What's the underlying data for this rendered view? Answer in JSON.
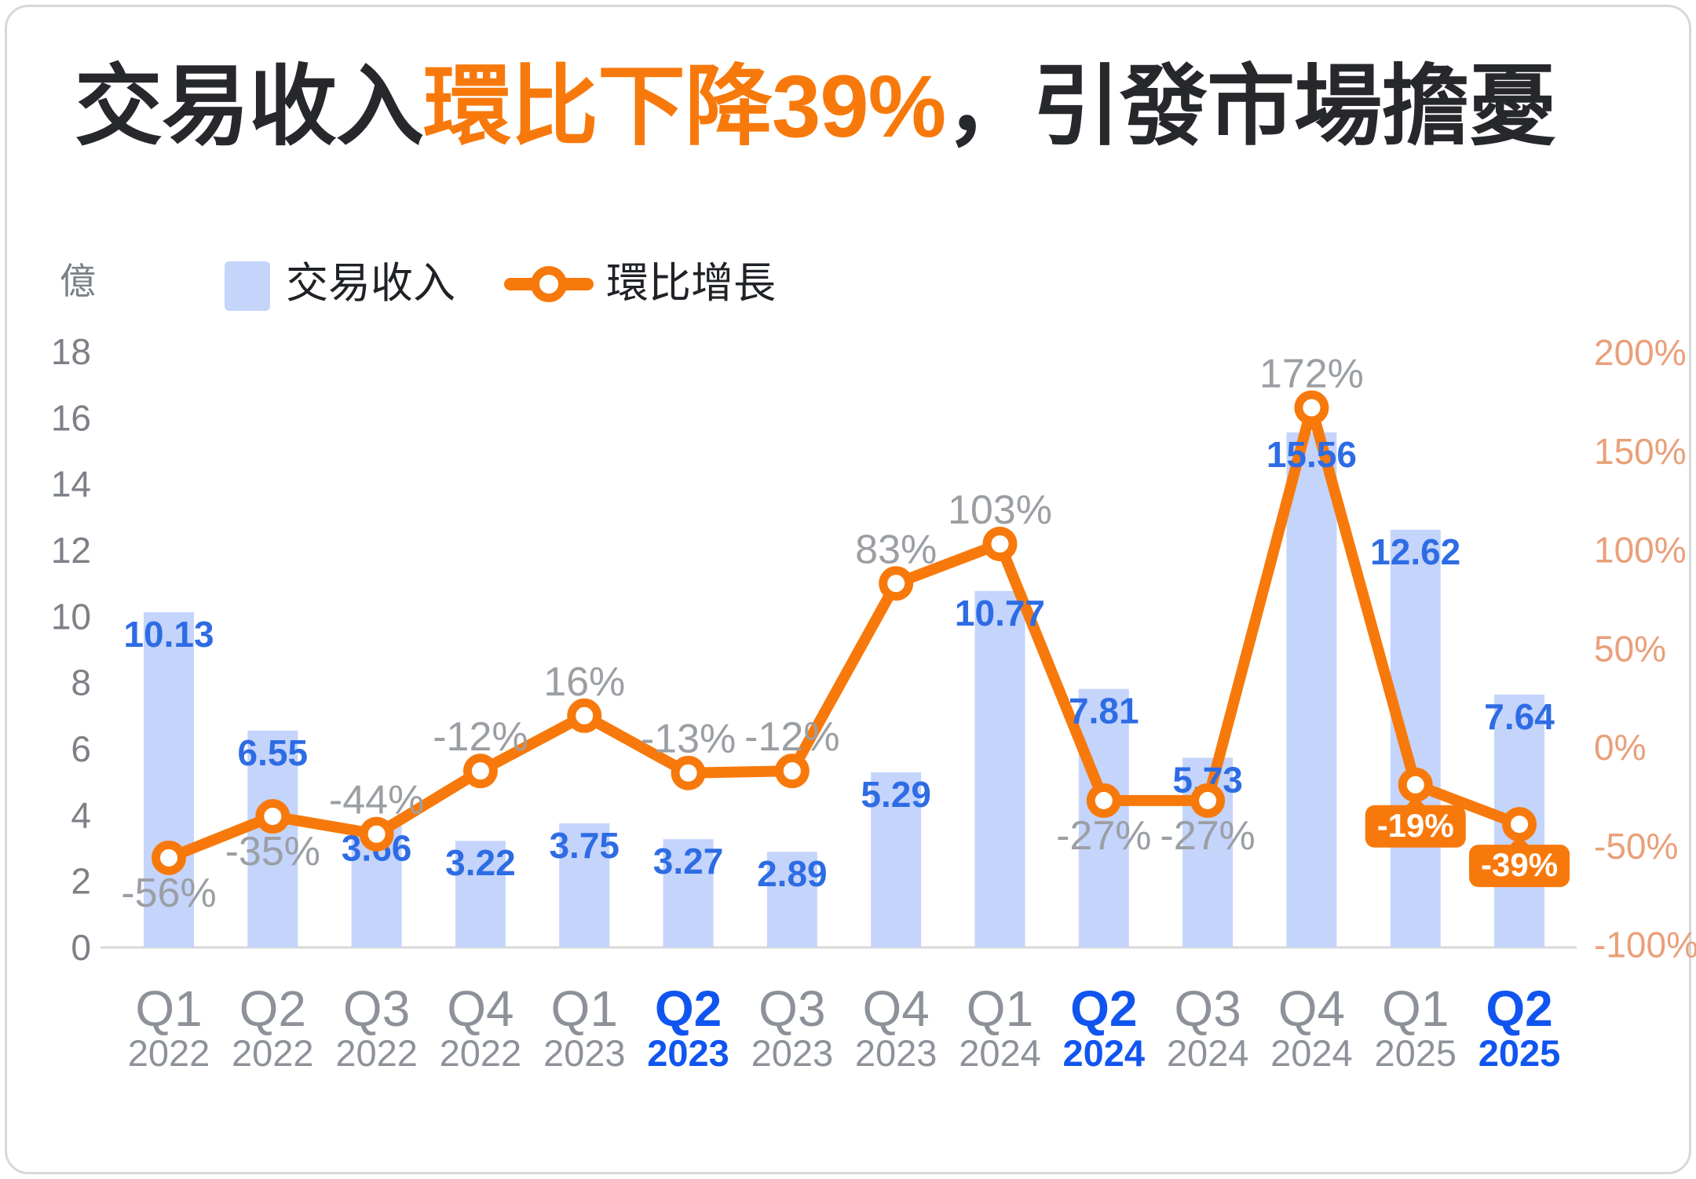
{
  "title": {
    "prefix": "交易收入",
    "highlight": "環比下降39%",
    "suffix": "，引發市場擔憂"
  },
  "unit_label": "億",
  "legend": {
    "bar_label": "交易收入",
    "line_label": "環比增長",
    "position": "top-left"
  },
  "colors": {
    "bar": "#c4d4fb",
    "bar_value_label": "#2e6ce4",
    "line": "#f8790b",
    "line_value_label": "#9b9fa4",
    "badge_bg": "#f8790b",
    "badge_text": "#ffffff",
    "left_axis_label": "#7c8087",
    "right_axis_label": "#e9a07a",
    "x_label_gray": "#8d9199",
    "x_label_highlight": "#1155f0",
    "title_dark": "#26282c",
    "title_highlight": "#f8790b",
    "axis_line": "#d8d8d8"
  },
  "chart_data": {
    "type": "combo-bar-line",
    "title": "交易收入環比下降39%，引發市場擔憂",
    "categories": [
      {
        "quarter": "Q1",
        "year": "2022",
        "highlight": false
      },
      {
        "quarter": "Q2",
        "year": "2022",
        "highlight": false
      },
      {
        "quarter": "Q3",
        "year": "2022",
        "highlight": false
      },
      {
        "quarter": "Q4",
        "year": "2022",
        "highlight": false
      },
      {
        "quarter": "Q1",
        "year": "2023",
        "highlight": false
      },
      {
        "quarter": "Q2",
        "year": "2023",
        "highlight": true
      },
      {
        "quarter": "Q3",
        "year": "2023",
        "highlight": false
      },
      {
        "quarter": "Q4",
        "year": "2023",
        "highlight": false
      },
      {
        "quarter": "Q1",
        "year": "2024",
        "highlight": false
      },
      {
        "quarter": "Q2",
        "year": "2024",
        "highlight": true
      },
      {
        "quarter": "Q3",
        "year": "2024",
        "highlight": false
      },
      {
        "quarter": "Q4",
        "year": "2024",
        "highlight": false
      },
      {
        "quarter": "Q1",
        "year": "2025",
        "highlight": false
      },
      {
        "quarter": "Q2",
        "year": "2025",
        "highlight": true
      }
    ],
    "series": [
      {
        "name": "交易收入",
        "type": "bar",
        "axis": "left",
        "unit": "億",
        "values": [
          10.13,
          6.55,
          3.66,
          3.22,
          3.75,
          3.27,
          2.89,
          5.29,
          10.77,
          7.81,
          5.73,
          15.56,
          12.62,
          7.64
        ]
      },
      {
        "name": "環比增長",
        "type": "line",
        "axis": "right",
        "values_pct": [
          -56,
          -35,
          -44,
          -12,
          16,
          -13,
          -12,
          83,
          103,
          -27,
          -27,
          172,
          -19,
          -39
        ],
        "labels": [
          "-56%",
          "-35%",
          "-44%",
          "-12%",
          "16%",
          "-13%",
          "-12%",
          "83%",
          "103%",
          "-27%",
          "-27%",
          "172%",
          "-19%",
          "-39%"
        ],
        "label_placement": [
          "below",
          "below",
          "above",
          "above",
          "above",
          "above",
          "above",
          "above",
          "above",
          "below",
          "below",
          "above",
          "badge",
          "badge"
        ]
      }
    ],
    "left_axis": {
      "title": "億",
      "min": 0,
      "max": 18,
      "tick_step": 2,
      "ticks": [
        0,
        2,
        4,
        6,
        8,
        10,
        12,
        14,
        16,
        18
      ]
    },
    "right_axis": {
      "min": -100,
      "max": 200,
      "tick_step": 50,
      "ticks": [
        "-100%",
        "-50%",
        "0%",
        "50%",
        "100%",
        "150%",
        "200%"
      ]
    },
    "grid": "baseline-only",
    "legend_position": "top-left"
  }
}
